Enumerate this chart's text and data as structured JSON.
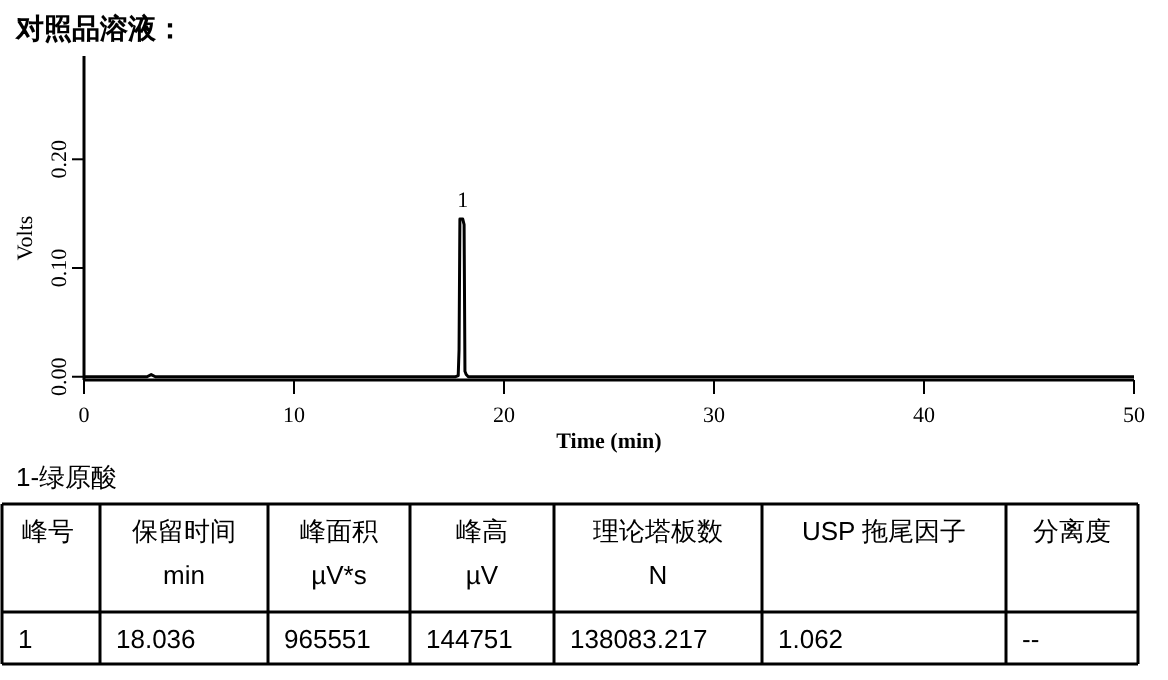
{
  "chart_data": {
    "type": "line",
    "title": "对照品溶液：",
    "xlabel": "Time (min)",
    "ylabel": "Volts",
    "x": [
      0,
      3.0,
      3.2,
      3.4,
      17.7,
      17.82,
      17.86,
      17.9,
      18.036,
      18.1,
      18.14,
      18.2,
      18.3,
      50
    ],
    "series": [
      {
        "color": "#000000",
        "values": [
          0,
          0,
          0.002,
          0,
          0,
          0.001,
          0.025,
          0.145,
          0.145,
          0.14,
          0.005,
          0.002,
          0,
          0
        ]
      }
    ],
    "xlim": [
      0,
      50
    ],
    "ylim": [
      -0.003,
      0.295
    ],
    "xticks": [
      0,
      10,
      20,
      30,
      40,
      50
    ],
    "yticks": [
      {
        "value": 0,
        "label": "0.00"
      },
      {
        "value": 0.1,
        "label": "0.10"
      },
      {
        "value": 0.2,
        "label": "0.20"
      }
    ],
    "grid": false,
    "marker": "none",
    "line_style": "solid",
    "annotations": [
      {
        "text": "1",
        "x": 18.036,
        "y": 0.145
      },
      "1-绿原酸",
      "峰号",
      "保留时间",
      "峰面积",
      "峰高",
      "理论塔板数",
      "USP 拖尾因子",
      "分离度",
      "min",
      "µV*s",
      "µV",
      "N",
      "1",
      "18.036",
      "965551",
      "144751",
      "138083.217",
      "1.062",
      "--"
    ]
  }
}
